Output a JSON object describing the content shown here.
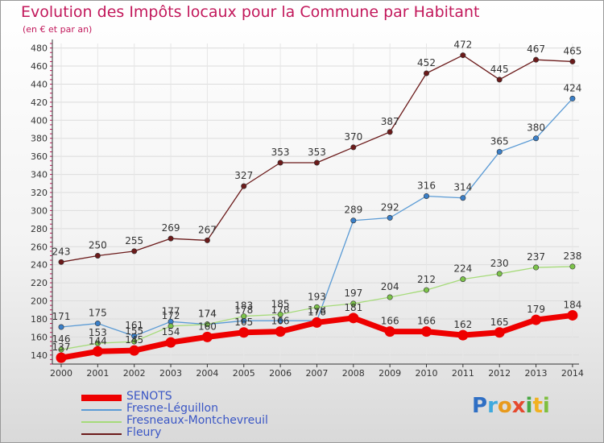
{
  "title": "Evolution des Impôts locaux pour la Commune par Habitant",
  "subtitle": "(en € et par an)",
  "logo": {
    "letters": [
      {
        "ch": "P",
        "color": "#2f6fc4"
      },
      {
        "ch": "r",
        "color": "#3fa9dd"
      },
      {
        "ch": "o",
        "color": "#e89a1c"
      },
      {
        "ch": "x",
        "color": "#e5492e"
      },
      {
        "ch": "i",
        "color": "#49a843"
      },
      {
        "ch": "t",
        "color": "#f2b11f"
      },
      {
        "ch": "i",
        "color": "#7fbf3f"
      }
    ]
  },
  "chart_data": {
    "type": "line",
    "x": [
      "2000",
      "2001",
      "2002",
      "2003",
      "2004",
      "2005",
      "2006",
      "2007",
      "2008",
      "2009",
      "2010",
      "2011",
      "2012",
      "2013",
      "2014"
    ],
    "ylim": [
      130,
      485
    ],
    "yticks": [
      140,
      160,
      180,
      200,
      220,
      240,
      260,
      280,
      300,
      320,
      340,
      360,
      380,
      400,
      420,
      440,
      460,
      480
    ],
    "grid": true,
    "legend_position": "bottom-left",
    "series": [
      {
        "name": "Fleury",
        "color": "#6b1a1a",
        "marker": "#6b1a1a",
        "values": [
          243,
          250,
          255,
          269,
          267,
          327,
          353,
          353,
          370,
          387,
          452,
          472,
          445,
          467,
          465
        ]
      },
      {
        "name": "Fresne-Léguillon",
        "color": "#5b9bd5",
        "marker": "#3a7fc8",
        "values": [
          171,
          175,
          161,
          177,
          174,
          178,
          178,
          178,
          289,
          292,
          316,
          314,
          365,
          380,
          424
        ]
      },
      {
        "name": "Fresneaux-Montchevreuil",
        "color": "#a6db7a",
        "marker": "#7cc34a",
        "values": [
          146,
          153,
          155,
          172,
          174,
          183,
          185,
          193,
          197,
          204,
          212,
          224,
          230,
          237,
          238
        ]
      },
      {
        "name": "SENOTS",
        "color": "#ee0000",
        "marker": "#ee0000",
        "values": [
          137,
          144,
          145,
          154,
          160,
          165,
          166,
          176,
          181,
          166,
          166,
          162,
          165,
          179,
          184
        ]
      }
    ],
    "label_colors": {
      "Fleury": "#333333",
      "Fresne-Léguillon": "#333333",
      "Fresneaux-Montchevreuil": "#333333",
      "SENOTS": "#333333"
    }
  }
}
